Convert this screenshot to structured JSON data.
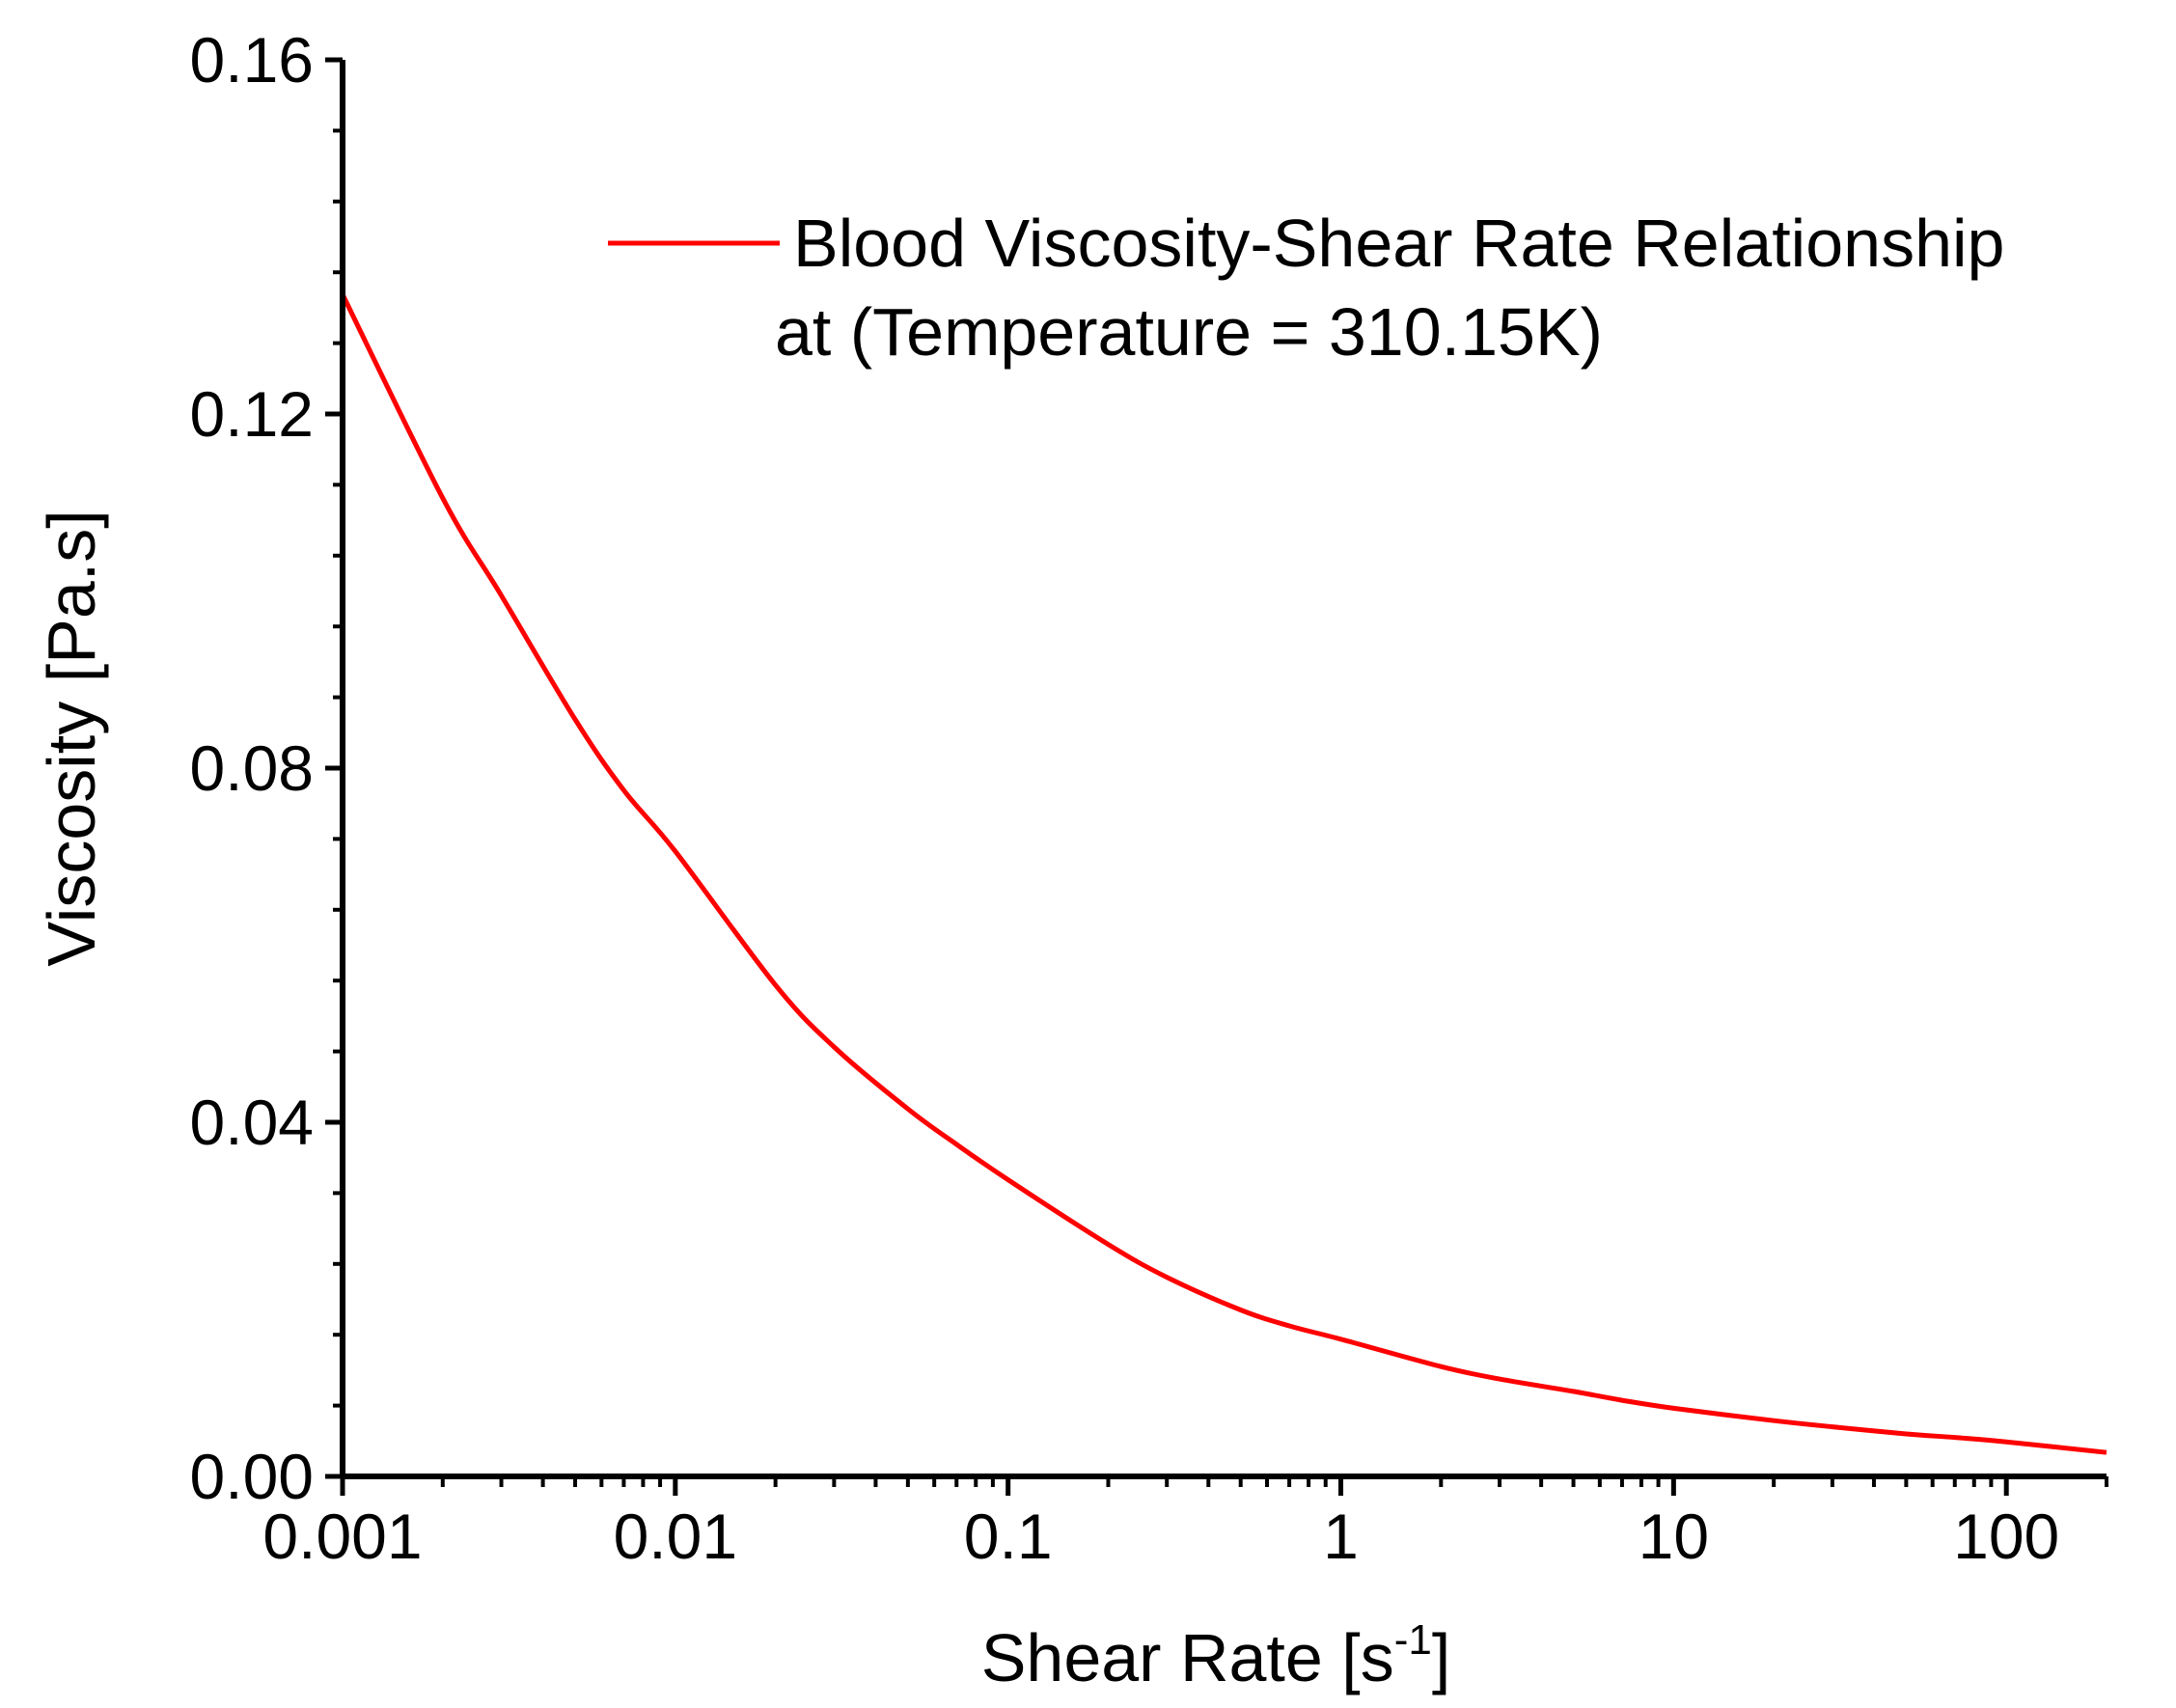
{
  "chart_data": {
    "type": "line",
    "xscale": "log",
    "xlim": [
      0.001,
      200
    ],
    "ylim": [
      0,
      0.16
    ],
    "x_ticks": [
      0.001,
      0.01,
      0.1,
      1,
      10,
      100
    ],
    "x_tick_labels": [
      "0.001",
      "0.01",
      "0.1",
      "1",
      "10",
      "100"
    ],
    "y_ticks": [
      0,
      0.04,
      0.08,
      0.12,
      0.16
    ],
    "y_tick_labels": [
      "0.00",
      "0.04",
      "0.08",
      "0.12",
      "0.16"
    ],
    "xlabel": {
      "main": "Shear Rate [s",
      "sup": "-1",
      "end": "]"
    },
    "ylabel": "Viscosity [Pa.s]",
    "legend_position": "top-right",
    "grid": false,
    "series": [
      {
        "name_line1": "Blood Viscosity-Shear Rate Relationship",
        "name_line2": "at (Temperature = 310.15K)",
        "color": "#ff0000",
        "x": [
          0.001,
          0.002,
          0.003,
          0.005,
          0.007,
          0.01,
          0.02,
          0.03,
          0.05,
          0.07,
          0.1,
          0.2,
          0.3,
          0.5,
          0.7,
          1,
          2,
          3,
          5,
          7,
          10,
          20,
          30,
          50,
          70,
          100,
          200
        ],
        "y": [
          0.1335,
          0.1105,
          0.0995,
          0.0855,
          0.0775,
          0.0706,
          0.0555,
          0.0485,
          0.0415,
          0.0375,
          0.0335,
          0.0262,
          0.0225,
          0.0188,
          0.017,
          0.0155,
          0.0124,
          0.011,
          0.0096,
          0.0086,
          0.0077,
          0.0063,
          0.0056,
          0.0048,
          0.0044,
          0.0039,
          0.0027
        ]
      }
    ]
  }
}
